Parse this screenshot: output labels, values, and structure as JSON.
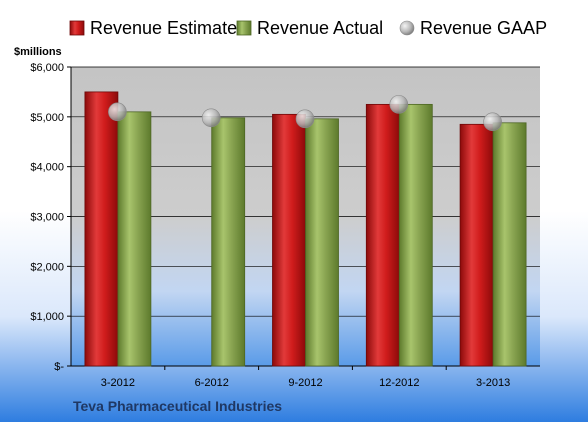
{
  "chart_data": {
    "type": "bar",
    "categories": [
      "3-2012",
      "6-2012",
      "9-2012",
      "12-2012",
      "3-2013"
    ],
    "series": [
      {
        "name": "Revenue Estimate",
        "values": [
          5500,
          null,
          5050,
          5250,
          4850
        ],
        "color": "#c81414"
      },
      {
        "name": "Revenue Actual",
        "values": [
          5100,
          4980,
          4960,
          5250,
          4880
        ],
        "color": "#8aa552"
      },
      {
        "name": "Revenue GAAP",
        "values": [
          5100,
          4980,
          4960,
          5250,
          4900
        ],
        "color": "#b8b8b8",
        "marker": "circle"
      }
    ],
    "unit_label": "$millions",
    "ylim": [
      0,
      6000
    ],
    "y_ticks": [
      0,
      1000,
      2000,
      3000,
      4000,
      5000,
      6000
    ],
    "y_tick_labels": [
      "$-",
      "$1,000",
      "$2,000",
      "$3,000",
      "$4,000",
      "$5,000",
      "$6,000"
    ],
    "grid": true,
    "legend_position": "top",
    "company": "Teva Pharmaceutical Industries"
  }
}
